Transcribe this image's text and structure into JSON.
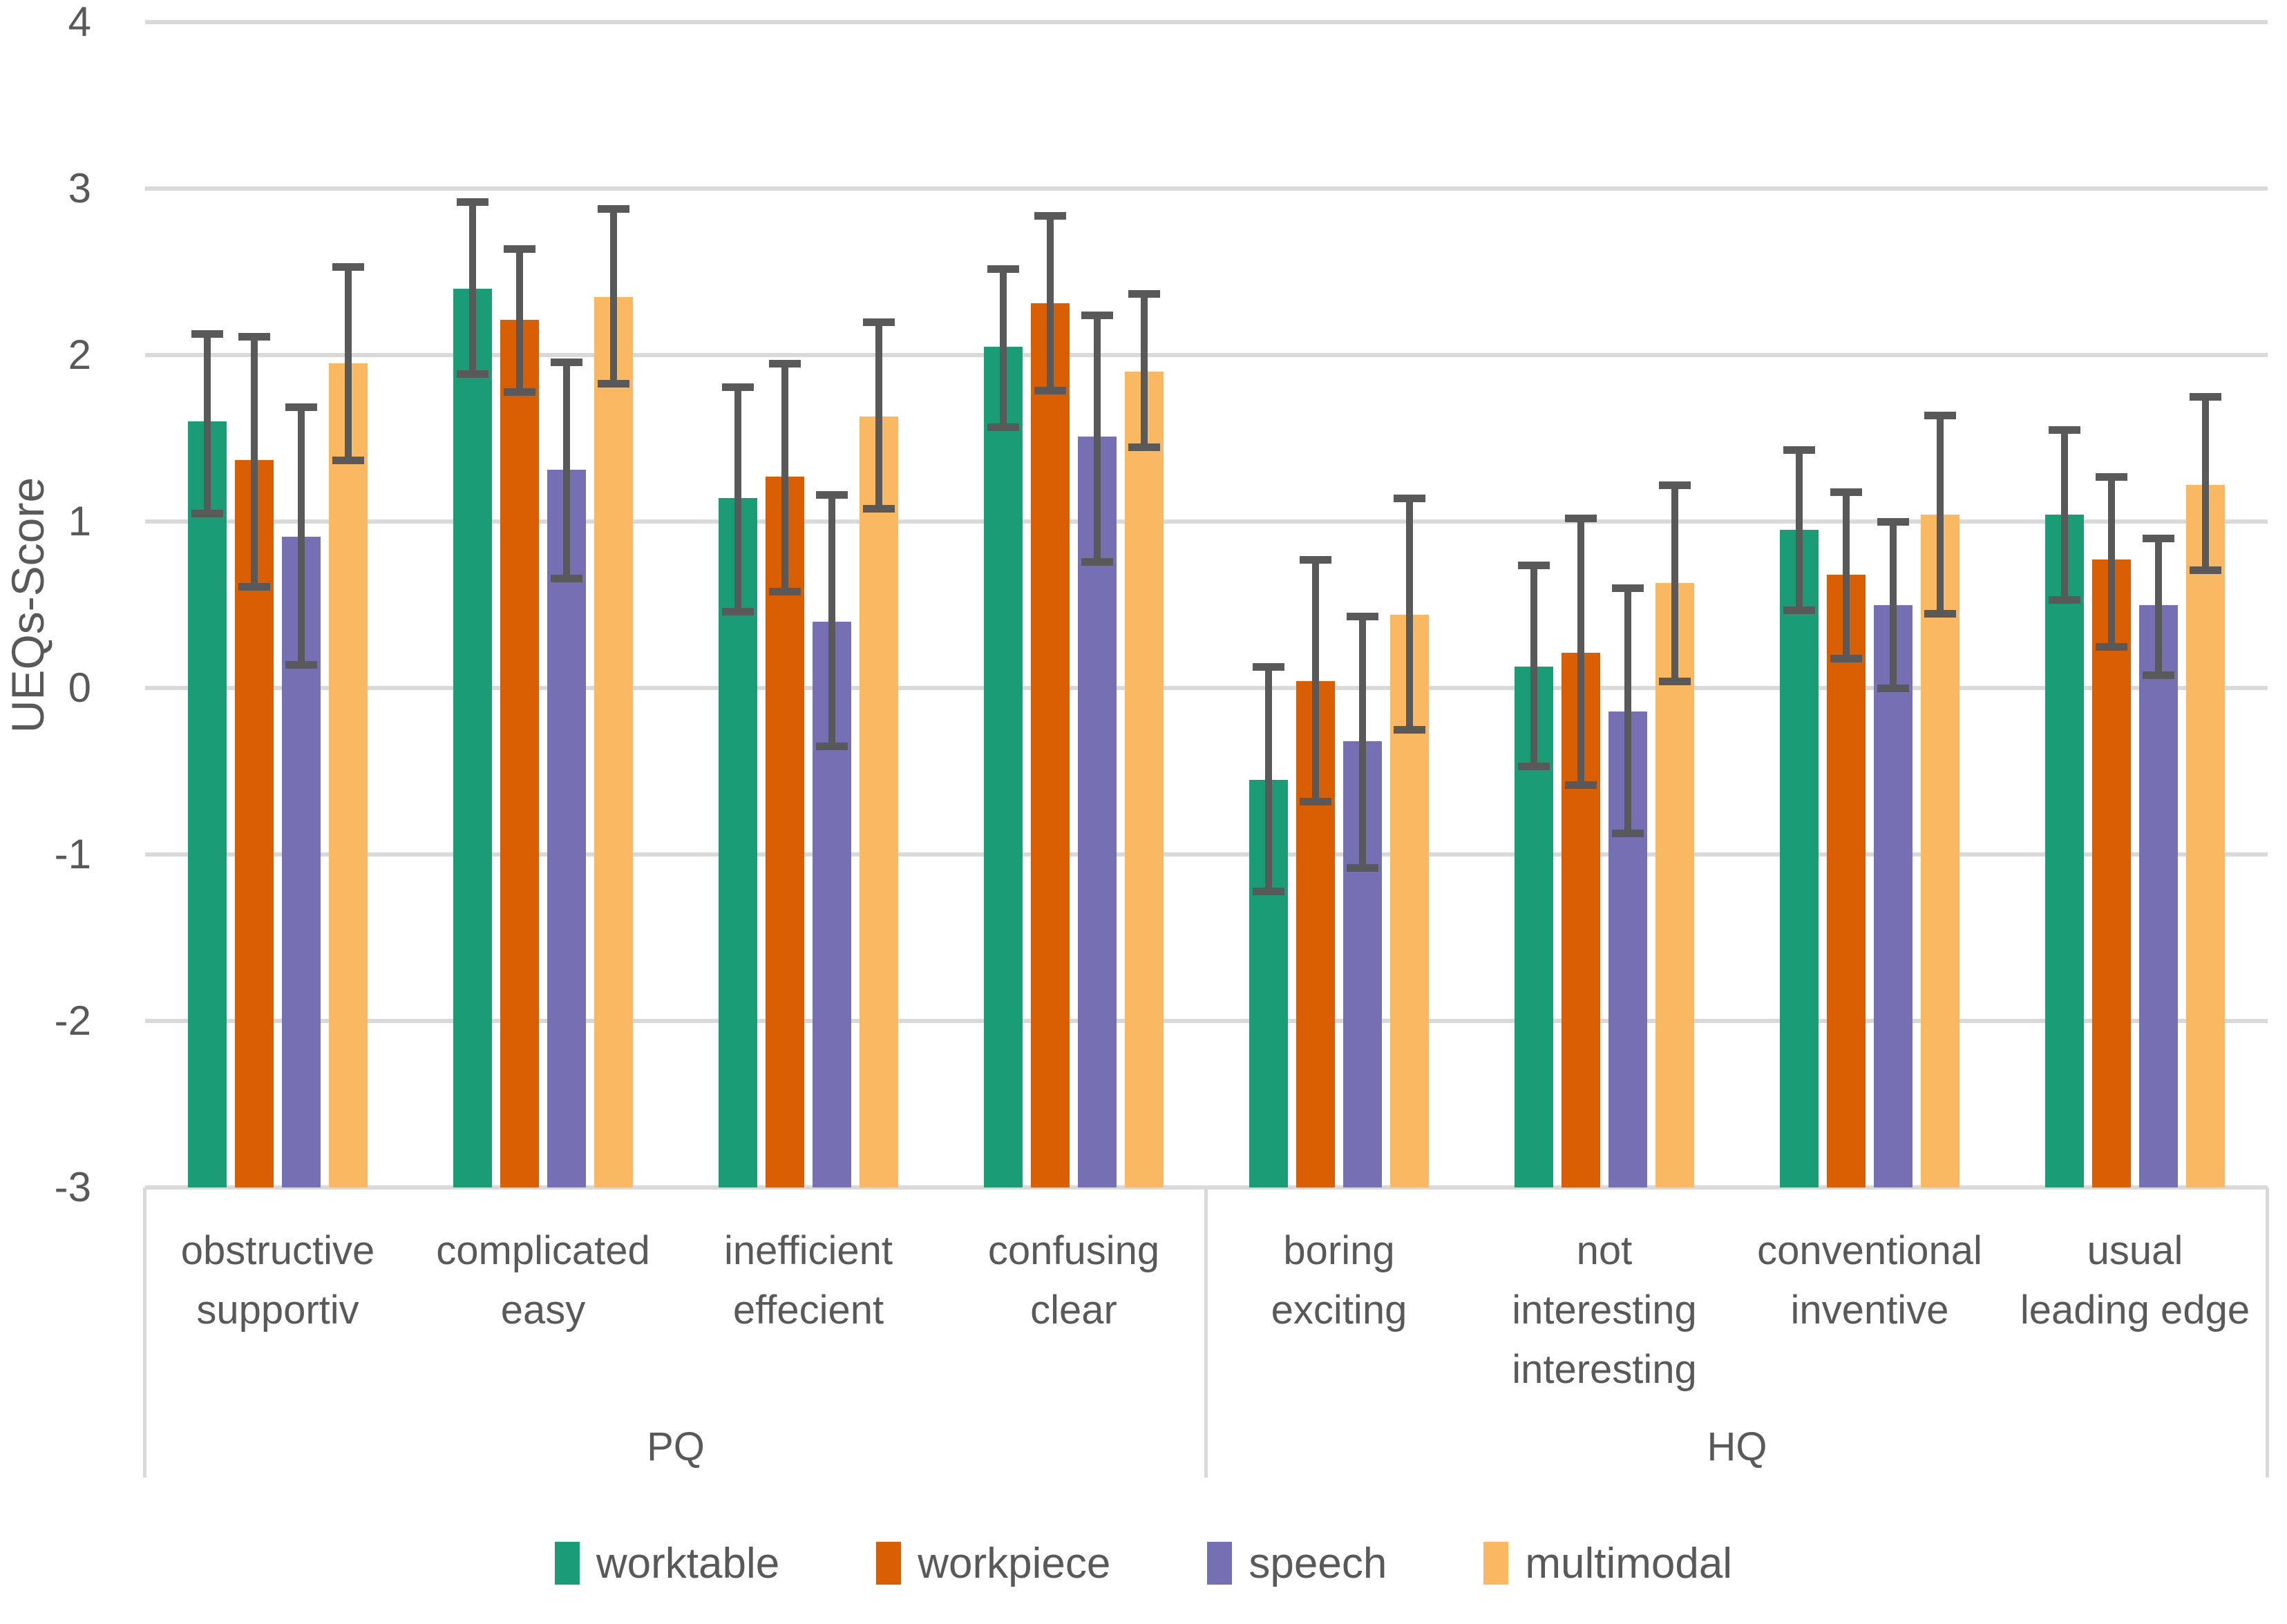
{
  "chart_data": {
    "type": "bar",
    "title": "",
    "xlabel": "",
    "ylabel": "UEQs-Score",
    "ylim": [
      -3,
      4
    ],
    "yticks": [
      4,
      3,
      2,
      1,
      0,
      -1,
      -2,
      -3
    ],
    "bar_base": -3,
    "grid": true,
    "legend_position": "bottom",
    "error_bar_color": "#595959",
    "gridline_color": "#D9D9D9",
    "categories": [
      {
        "lines": [
          "obstructive",
          "supportiv"
        ]
      },
      {
        "lines": [
          "complicated",
          "easy"
        ]
      },
      {
        "lines": [
          "inefficient",
          "effecient"
        ]
      },
      {
        "lines": [
          "confusing",
          "clear"
        ]
      },
      {
        "lines": [
          "boring",
          "exciting"
        ]
      },
      {
        "lines": [
          "not",
          "interesting",
          "interesting"
        ]
      },
      {
        "lines": [
          "conventional",
          "inventive"
        ]
      },
      {
        "lines": [
          "usual",
          "leading edge"
        ]
      }
    ],
    "category_groups": [
      {
        "label": "PQ",
        "from": 0,
        "to": 3
      },
      {
        "label": "HQ",
        "from": 4,
        "to": 7
      }
    ],
    "series": [
      {
        "name": "worktable",
        "color": "#1A9C76",
        "values": [
          1.6,
          2.4,
          1.14,
          2.05,
          -0.55,
          0.13,
          0.95,
          1.04
        ],
        "err_low": [
          1.05,
          1.89,
          0.46,
          1.57,
          -1.22,
          -0.47,
          0.47,
          0.53
        ],
        "err_high": [
          2.13,
          2.92,
          1.81,
          2.52,
          0.13,
          0.74,
          1.43,
          1.55
        ]
      },
      {
        "name": "workpiece",
        "color": "#D95F02",
        "values": [
          1.37,
          2.21,
          1.27,
          2.31,
          0.04,
          0.21,
          0.68,
          0.77
        ],
        "err_low": [
          0.61,
          1.78,
          0.58,
          1.79,
          -0.68,
          -0.58,
          0.18,
          0.25
        ],
        "err_high": [
          2.11,
          2.64,
          1.95,
          2.84,
          0.77,
          1.02,
          1.18,
          1.27
        ]
      },
      {
        "name": "speech",
        "color": "#7570B3",
        "values": [
          0.91,
          1.31,
          0.4,
          1.51,
          -0.32,
          -0.14,
          0.5,
          0.5
        ],
        "err_low": [
          0.14,
          0.66,
          -0.35,
          0.76,
          -1.08,
          -0.87,
          0.0,
          0.08
        ],
        "err_high": [
          1.69,
          1.96,
          1.16,
          2.24,
          0.43,
          0.6,
          1.0,
          0.9
        ]
      },
      {
        "name": "multimodal",
        "color": "#FBB863",
        "values": [
          1.95,
          2.35,
          1.63,
          1.9,
          0.44,
          0.63,
          1.04,
          1.22
        ],
        "err_low": [
          1.37,
          1.83,
          1.08,
          1.45,
          -0.25,
          0.04,
          0.45,
          0.71
        ],
        "err_high": [
          2.53,
          2.88,
          2.2,
          2.37,
          1.14,
          1.22,
          1.64,
          1.75
        ]
      }
    ]
  }
}
